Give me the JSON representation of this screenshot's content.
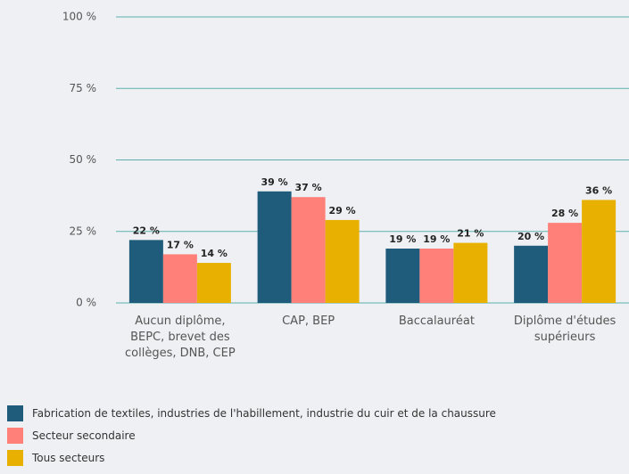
{
  "chart_data": {
    "type": "bar",
    "categories": [
      "Aucun diplôme, BEPC, brevet des collèges, DNB, CEP",
      "CAP, BEP",
      "Baccalauréat",
      "Diplôme d'études supérieurs"
    ],
    "series": [
      {
        "name": "Fabrication de textiles, industries de l'habillement, industrie du cuir et de la chaussure",
        "color": "#1f5b7a",
        "values": [
          22,
          39,
          19,
          20
        ],
        "value_labels": [
          "22 %",
          "39 %",
          "19 %",
          "20 %"
        ]
      },
      {
        "name": "Secteur secondaire",
        "color": "#ff7f79",
        "values": [
          17,
          37,
          19,
          28
        ],
        "value_labels": [
          "17 %",
          "37 %",
          "19 %",
          "28 %"
        ]
      },
      {
        "name": "Tous secteurs",
        "color": "#e8b000",
        "values": [
          14,
          29,
          21,
          36
        ],
        "value_labels": [
          "14 %",
          "29 %",
          "21 %",
          "36 %"
        ]
      }
    ],
    "ylim": [
      0,
      100
    ],
    "yticks": [
      {
        "value": 0,
        "label": "0 %"
      },
      {
        "value": 25,
        "label": "25 %"
      },
      {
        "value": 50,
        "label": "50 %"
      },
      {
        "value": 75,
        "label": "75 %"
      },
      {
        "value": 100,
        "label": "100 %"
      }
    ],
    "grid": true,
    "legend": "bottom"
  }
}
